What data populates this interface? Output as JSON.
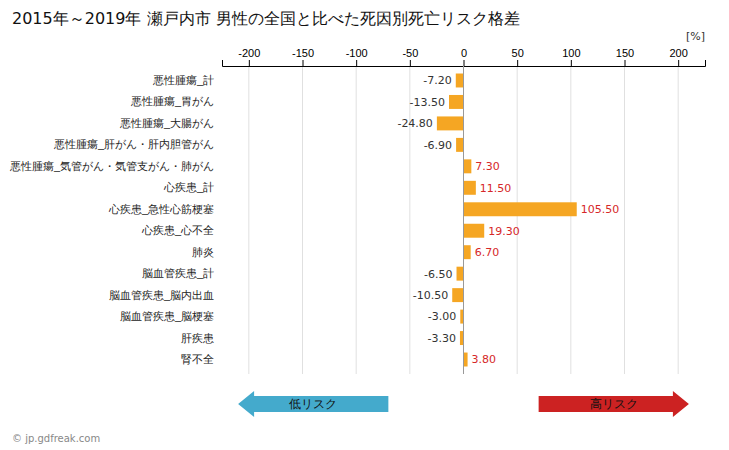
{
  "chart_data": {
    "type": "bar",
    "orientation": "horizontal",
    "title": "2015年～2019年 瀬戸内市 男性の全国と比べた死因別死亡リスク格差",
    "xlabel": "[%]",
    "categories": [
      "悪性腫瘍_計",
      "悪性腫瘍_胃がん",
      "悪性腫瘍_大腸がん",
      "悪性腫瘍_肝がん・肝内胆管がん",
      "悪性腫瘍_気管がん・気管支がん・肺がん",
      "心疾患_計",
      "心疾患_急性心筋梗塞",
      "心疾患_心不全",
      "肺炎",
      "脳血管疾患_計",
      "脳血管疾患_脳内出血",
      "脳血管疾患_脳梗塞",
      "肝疾患",
      "腎不全"
    ],
    "values": [
      -7.2,
      -13.5,
      -24.8,
      -6.9,
      7.3,
      11.5,
      105.5,
      19.3,
      6.7,
      -6.5,
      -10.5,
      -3.0,
      -3.3,
      3.8
    ],
    "value_labels": [
      "-7.20",
      "-13.50",
      "-24.80",
      "-6.90",
      "7.30",
      "11.50",
      "105.50",
      "19.30",
      "6.70",
      "-6.50",
      "-10.50",
      "-3.00",
      "-3.30",
      "3.80"
    ],
    "data_labels": true,
    "color": "#f5a623",
    "xlim": [
      -225,
      225
    ],
    "xticks": [
      -200,
      -150,
      -100,
      -50,
      0,
      50,
      100,
      150,
      200
    ],
    "grid": true,
    "annotations": [
      {
        "text": "低リスク",
        "color": "#44aacc",
        "x": [
          -70,
          -210
        ]
      },
      {
        "text": "高リスク",
        "color": "#cc2222",
        "x": [
          70,
          210
        ]
      },
      {
        "text": "© jp.gdfreak.com"
      }
    ]
  }
}
